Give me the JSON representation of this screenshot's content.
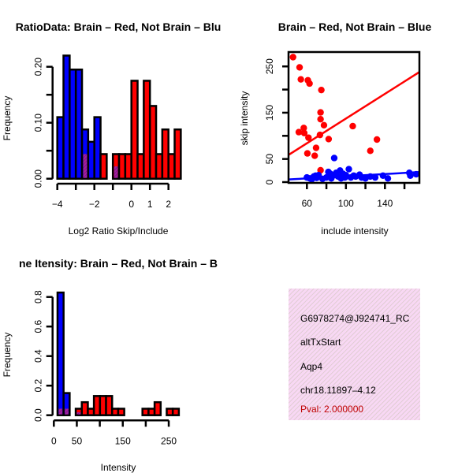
{
  "colors": {
    "red": "#ff0000",
    "blue": "#0000ff",
    "overlap": "#a020a0",
    "box_bg": "#f8d8f4",
    "pval": "#c00000"
  },
  "chart_data": [
    {
      "type": "bar",
      "title": "RatioData: Brain – Red, Not Brain – Blue",
      "title_visible": "RatioData: Brain – Red, Not Brain – Blu",
      "xlabel": "Log2 Ratio Skip/Include",
      "ylabel": "Frequency",
      "bin_start": -4,
      "bin_width": 0.3333,
      "series": [
        {
          "name": "Not Brain",
          "color": "blue",
          "values": [
            0.11,
            0.22,
            0.195,
            0.195,
            0.088,
            0.066,
            0.11,
            0,
            0,
            0.022,
            0,
            0,
            0,
            0,
            0,
            0,
            0,
            0,
            0,
            0
          ]
        },
        {
          "name": "Brain",
          "color": "red",
          "values": [
            0,
            0,
            0,
            0,
            0.044,
            0,
            0,
            0.044,
            0,
            0.044,
            0.044,
            0.044,
            0.175,
            0.044,
            0.175,
            0.13,
            0.044,
            0.088,
            0.044,
            0.088
          ]
        }
      ],
      "xticks": [
        -4,
        -3,
        -2,
        -1,
        0,
        1,
        2
      ],
      "xtick_labels": [
        "−4",
        "",
        "−2",
        "",
        "0",
        "1",
        "2"
      ],
      "yticks": [
        0,
        0.05,
        0.1,
        0.15,
        0.2
      ],
      "ytick_labels": [
        "0.00",
        "",
        "0.10",
        "",
        "0.20"
      ],
      "ylim": [
        0,
        0.22
      ]
    },
    {
      "type": "scatter",
      "title": "Brain – Red, Not Brain – Blue",
      "xlabel": "include intensity",
      "ylabel": "skip intensity",
      "xlim": [
        41,
        175
      ],
      "ylim": [
        0,
        281
      ],
      "xticks": [
        60,
        80,
        100,
        120,
        140,
        160
      ],
      "xtick_labels": [
        "60",
        "",
        "100",
        "",
        "140",
        ""
      ],
      "yticks": [
        0,
        50,
        100,
        150,
        200,
        250
      ],
      "ytick_labels": [
        "0",
        "50",
        "",
        "150",
        "",
        "250"
      ],
      "series": [
        {
          "name": "Brain",
          "color": "red",
          "points": [
            [
              45.8,
              270
            ],
            [
              52.5,
              248
            ],
            [
              53.8,
              222
            ],
            [
              61,
              220
            ],
            [
              62.7,
              213
            ],
            [
              74.8,
              199
            ],
            [
              74,
              150.6
            ],
            [
              74,
              136
            ],
            [
              77.5,
              123
            ],
            [
              56.8,
              117
            ],
            [
              51.7,
              108
            ],
            [
              57.3,
              106
            ],
            [
              61.6,
              96
            ],
            [
              73.4,
              102
            ],
            [
              82.3,
              93
            ],
            [
              107,
              121
            ],
            [
              131.8,
              92
            ],
            [
              69.4,
              74
            ],
            [
              125,
              67.6
            ],
            [
              60.5,
              62
            ],
            [
              68,
              57
            ],
            [
              74,
              25.6
            ]
          ],
          "fit": {
            "slope": 1.336,
            "intercept": 3.7
          }
        },
        {
          "name": "Not Brain",
          "color": "blue",
          "points": [
            [
              60,
              10
            ],
            [
              63,
              8
            ],
            [
              65,
              6
            ],
            [
              67,
              12
            ],
            [
              69,
              14
            ],
            [
              70,
              9
            ],
            [
              72,
              15
            ],
            [
              76,
              7
            ],
            [
              80,
              10
            ],
            [
              82,
              22
            ],
            [
              84,
              18
            ],
            [
              85,
              8
            ],
            [
              88,
              15
            ],
            [
              90,
              20
            ],
            [
              92,
              12
            ],
            [
              94,
              25
            ],
            [
              95,
              8
            ],
            [
              97,
              18
            ],
            [
              99,
              10
            ],
            [
              100,
              15
            ],
            [
              103,
              28
            ],
            [
              105,
              10
            ],
            [
              108,
              14
            ],
            [
              110,
              12
            ],
            [
              114,
              16
            ],
            [
              116,
              10
            ],
            [
              120,
              8
            ],
            [
              125,
              12
            ],
            [
              130,
              10
            ],
            [
              138,
              14
            ],
            [
              143,
              8
            ],
            [
              165,
              20
            ],
            [
              166,
              14
            ],
            [
              172,
              17
            ],
            [
              88,
              52
            ]
          ],
          "fit": {
            "slope": 0.119,
            "intercept": 0.8
          }
        }
      ]
    },
    {
      "type": "bar",
      "title": "Exon Intensity: Brain – Red, Not Brain – Blue",
      "title_visible": "ne Itensity: Brain – Red, Not Brain – B",
      "xlabel": "Intensity",
      "ylabel": "Frequency",
      "bin_start": 8,
      "bin_width": 13.2,
      "series": [
        {
          "name": "Not Brain",
          "color": "blue",
          "values": [
            0.83,
            0.15,
            0,
            0.02,
            0,
            0,
            0,
            0,
            0,
            0,
            0,
            0,
            0,
            0,
            0,
            0,
            0,
            0,
            0,
            0
          ]
        },
        {
          "name": "Brain",
          "color": "red",
          "values": [
            0.044,
            0.044,
            0,
            0.044,
            0.088,
            0.044,
            0.13,
            0.13,
            0.13,
            0.044,
            0.044,
            0,
            0,
            0,
            0.044,
            0.044,
            0.088,
            0,
            0.044,
            0.044
          ]
        }
      ],
      "xticks": [
        0,
        50,
        100,
        150,
        200,
        250
      ],
      "xtick_labels": [
        "0",
        "50",
        "",
        "150",
        "",
        "250"
      ],
      "yticks": [
        0,
        0.2,
        0.4,
        0.6,
        0.8
      ],
      "ytick_labels": [
        "0.0",
        "0.2",
        "0.4",
        "0.6",
        "0.8"
      ],
      "ylim": [
        0,
        0.85
      ]
    }
  ],
  "info_box": {
    "id": "G6978274@J924741_RC",
    "type": "altTxStart",
    "gene": "Aqp4",
    "location": "chr18.11897–4.12",
    "pval": "Pval: 2.000000"
  }
}
